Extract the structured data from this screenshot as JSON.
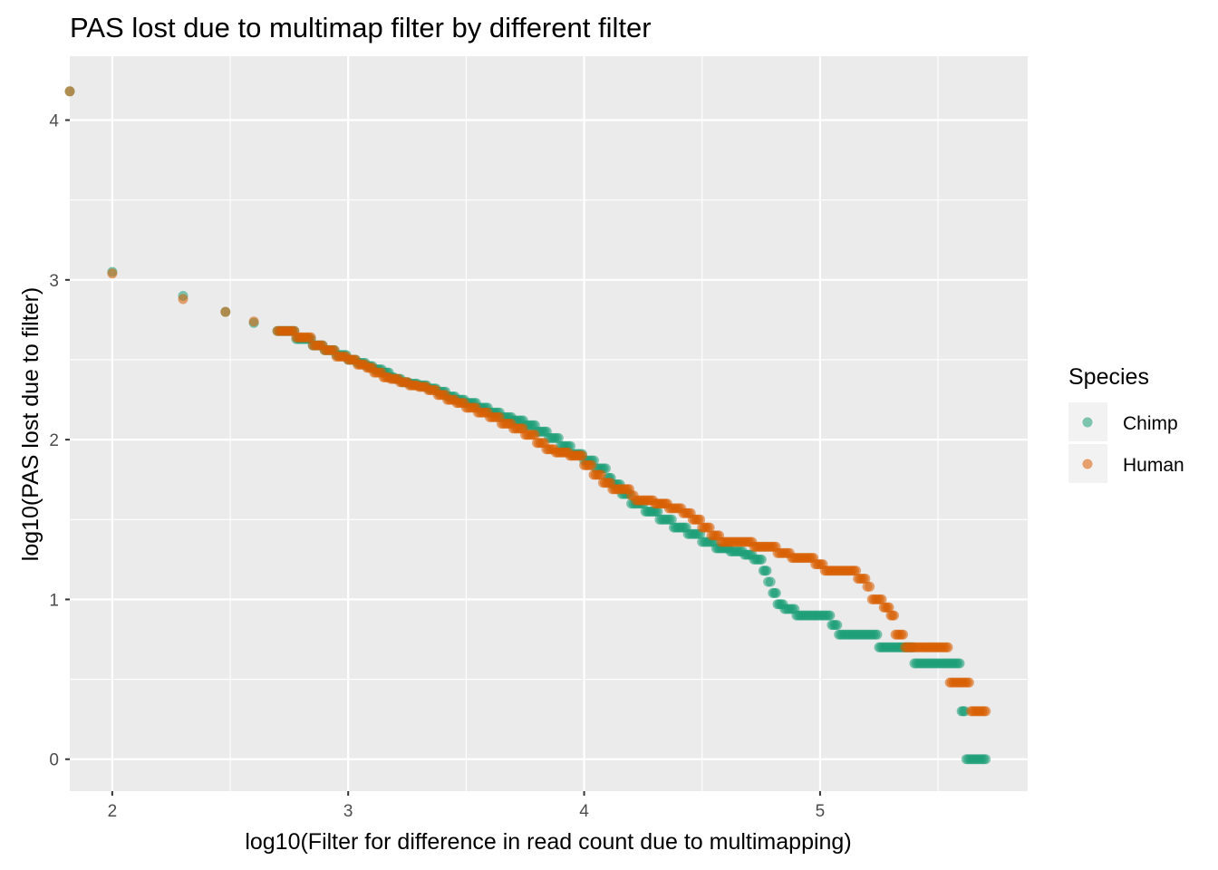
{
  "chart_data": {
    "type": "scatter",
    "title": "PAS lost due to multimap filter by different filter",
    "xlabel": "log10(Filter for difference in read count due to multimapping)",
    "ylabel": "log10(PAS lost due to filter)",
    "xlim": [
      1.82,
      5.88
    ],
    "ylim": [
      -0.2,
      4.4
    ],
    "x_ticks": [
      2,
      3,
      4,
      5
    ],
    "x_tick_labels": [
      "2",
      "3",
      "4",
      "5"
    ],
    "y_ticks": [
      0,
      1,
      2,
      3,
      4
    ],
    "y_tick_labels": [
      "0",
      "1",
      "2",
      "3",
      "4"
    ],
    "x_minor_ticks": [
      2.5,
      3.5,
      4.5,
      5.5
    ],
    "y_minor_ticks": [
      0.5,
      1.5,
      2.5,
      3.5
    ],
    "grid": true,
    "panel_background": "#ebebeb",
    "legend": {
      "title": "Species",
      "placement": "right",
      "entries": [
        "Chimp",
        "Human"
      ]
    },
    "series": [
      {
        "name": "Chimp",
        "color": "#1b9e77",
        "steps": [
          [
            1.82,
            4.18
          ],
          [
            2.0,
            3.05
          ],
          [
            2.3,
            2.9
          ],
          [
            2.48,
            2.8
          ],
          [
            2.6,
            2.73
          ],
          [
            2.7,
            2.68
          ],
          [
            2.78,
            2.63
          ],
          [
            2.85,
            2.59
          ],
          [
            2.9,
            2.56
          ],
          [
            2.95,
            2.53
          ],
          [
            3.0,
            2.5
          ],
          [
            3.04,
            2.48
          ],
          [
            3.08,
            2.46
          ],
          [
            3.11,
            2.44
          ],
          [
            3.15,
            2.42
          ],
          [
            3.18,
            2.39
          ],
          [
            3.2,
            2.38
          ],
          [
            3.23,
            2.36
          ],
          [
            3.26,
            2.35
          ],
          [
            3.3,
            2.34
          ],
          [
            3.34,
            2.32
          ],
          [
            3.38,
            2.3
          ],
          [
            3.42,
            2.27
          ],
          [
            3.46,
            2.25
          ],
          [
            3.5,
            2.23
          ],
          [
            3.55,
            2.2
          ],
          [
            3.6,
            2.17
          ],
          [
            3.65,
            2.14
          ],
          [
            3.7,
            2.12
          ],
          [
            3.75,
            2.09
          ],
          [
            3.8,
            2.05
          ],
          [
            3.85,
            2.01
          ],
          [
            3.9,
            1.96
          ],
          [
            3.95,
            1.91
          ],
          [
            4.0,
            1.87
          ],
          [
            4.05,
            1.82
          ],
          [
            4.1,
            1.76
          ],
          [
            4.12,
            1.72
          ],
          [
            4.16,
            1.66
          ],
          [
            4.2,
            1.6
          ],
          [
            4.26,
            1.55
          ],
          [
            4.32,
            1.5
          ],
          [
            4.38,
            1.45
          ],
          [
            4.44,
            1.41
          ],
          [
            4.5,
            1.36
          ],
          [
            4.56,
            1.32
          ],
          [
            4.62,
            1.3
          ],
          [
            4.68,
            1.28
          ],
          [
            4.72,
            1.25
          ],
          [
            4.76,
            1.18
          ],
          [
            4.78,
            1.11
          ],
          [
            4.8,
            1.04
          ],
          [
            4.82,
            0.97
          ],
          [
            4.85,
            0.94
          ],
          [
            4.9,
            0.9
          ],
          [
            5.05,
            0.84
          ],
          [
            5.08,
            0.78
          ],
          [
            5.25,
            0.7
          ],
          [
            5.4,
            0.6
          ],
          [
            5.6,
            0.3
          ],
          [
            5.62,
            0.0
          ]
        ],
        "x_end": 5.71
      },
      {
        "name": "Human",
        "color": "#d95f02",
        "steps": [
          [
            1.82,
            4.18
          ],
          [
            2.0,
            3.04
          ],
          [
            2.3,
            2.88
          ],
          [
            2.48,
            2.8
          ],
          [
            2.6,
            2.74
          ],
          [
            2.7,
            2.68
          ],
          [
            2.78,
            2.64
          ],
          [
            2.85,
            2.59
          ],
          [
            2.9,
            2.56
          ],
          [
            2.95,
            2.52
          ],
          [
            3.0,
            2.5
          ],
          [
            3.04,
            2.47
          ],
          [
            3.08,
            2.45
          ],
          [
            3.11,
            2.42
          ],
          [
            3.15,
            2.39
          ],
          [
            3.18,
            2.38
          ],
          [
            3.22,
            2.36
          ],
          [
            3.26,
            2.34
          ],
          [
            3.3,
            2.33
          ],
          [
            3.34,
            2.31
          ],
          [
            3.38,
            2.28
          ],
          [
            3.42,
            2.25
          ],
          [
            3.46,
            2.23
          ],
          [
            3.5,
            2.2
          ],
          [
            3.55,
            2.17
          ],
          [
            3.6,
            2.14
          ],
          [
            3.65,
            2.1
          ],
          [
            3.7,
            2.07
          ],
          [
            3.75,
            2.03
          ],
          [
            3.8,
            1.98
          ],
          [
            3.84,
            1.94
          ],
          [
            3.88,
            1.92
          ],
          [
            3.94,
            1.9
          ],
          [
            4.0,
            1.84
          ],
          [
            4.04,
            1.78
          ],
          [
            4.08,
            1.73
          ],
          [
            4.12,
            1.69
          ],
          [
            4.2,
            1.65
          ],
          [
            4.22,
            1.62
          ],
          [
            4.3,
            1.6
          ],
          [
            4.36,
            1.57
          ],
          [
            4.42,
            1.54
          ],
          [
            4.46,
            1.5
          ],
          [
            4.5,
            1.45
          ],
          [
            4.54,
            1.4
          ],
          [
            4.58,
            1.36
          ],
          [
            4.72,
            1.33
          ],
          [
            4.82,
            1.29
          ],
          [
            4.88,
            1.26
          ],
          [
            4.98,
            1.22
          ],
          [
            5.02,
            1.18
          ],
          [
            5.16,
            1.13
          ],
          [
            5.2,
            1.08
          ],
          [
            5.22,
            1.0
          ],
          [
            5.27,
            0.95
          ],
          [
            5.3,
            0.9
          ],
          [
            5.32,
            0.78
          ],
          [
            5.36,
            0.7
          ],
          [
            5.55,
            0.48
          ],
          [
            5.64,
            0.3
          ]
        ],
        "x_end": 5.71
      }
    ]
  }
}
